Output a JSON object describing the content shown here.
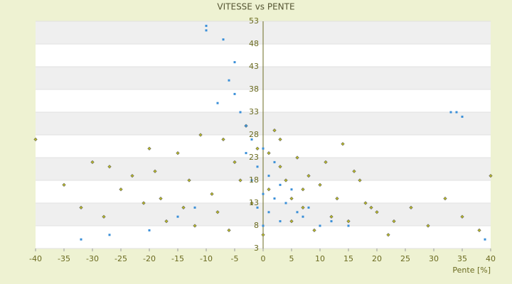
{
  "chart_data": {
    "type": "scatter",
    "title": "VITESSE vs PENTE",
    "x_label": "Pente [%]",
    "xlim": [
      -40,
      40
    ],
    "xticks": [
      -40,
      -35,
      -30,
      -25,
      -20,
      -15,
      -10,
      -5,
      0,
      5,
      10,
      15,
      20,
      25,
      30,
      35,
      40
    ],
    "ylim": [
      3,
      53
    ],
    "yticks": [
      3,
      8,
      13,
      18,
      23,
      28,
      33,
      38,
      43,
      48,
      53
    ],
    "series": [
      {
        "color": "#b8b828",
        "x": [
          -40,
          -35,
          -32,
          -30,
          -27,
          -25,
          -23,
          -21,
          -19,
          -17,
          -15,
          -13,
          -11,
          -9,
          -7,
          -5,
          -3,
          -1,
          1,
          2,
          3,
          4,
          5,
          6,
          7,
          8,
          10,
          12,
          14,
          16,
          18,
          20,
          23,
          26,
          29,
          32,
          35,
          38,
          40,
          -20,
          -28,
          -18,
          -14,
          -12,
          -8,
          -6,
          -4,
          -2,
          0,
          1,
          3,
          5,
          7,
          9,
          11,
          13,
          15,
          17,
          19,
          22
        ],
        "values": [
          27,
          17,
          12,
          22,
          21,
          16,
          19,
          13,
          20,
          9,
          24,
          18,
          28,
          15,
          27,
          22,
          30,
          25,
          24,
          29,
          21,
          18,
          14,
          23,
          12,
          19,
          17,
          10,
          26,
          20,
          13,
          11,
          9,
          12,
          8,
          14,
          10,
          7,
          19,
          25,
          10,
          14,
          12,
          8,
          11,
          7,
          18,
          13,
          6,
          16,
          27,
          9,
          16,
          7,
          22,
          14,
          9,
          18,
          12,
          6
        ]
      },
      {
        "color": "#3a8fd8",
        "x": [
          -10,
          -10,
          -7,
          -6,
          -5,
          -5,
          -4,
          -3,
          -3,
          -2,
          -2,
          -1,
          -1,
          0,
          0,
          0,
          1,
          1,
          2,
          2,
          3,
          3,
          4,
          5,
          6,
          7,
          8,
          10,
          12,
          15,
          -15,
          -20,
          -32,
          -27,
          33,
          34,
          35,
          39,
          -8,
          -12
        ],
        "values": [
          52,
          51,
          49,
          40,
          44,
          37,
          33,
          30,
          24,
          27,
          18,
          21,
          12,
          25,
          15,
          8,
          19,
          11,
          22,
          14,
          17,
          9,
          13,
          16,
          11,
          10,
          12,
          8,
          9,
          8,
          10,
          7,
          5,
          6,
          33,
          33,
          32,
          5,
          35,
          12
        ]
      }
    ]
  }
}
